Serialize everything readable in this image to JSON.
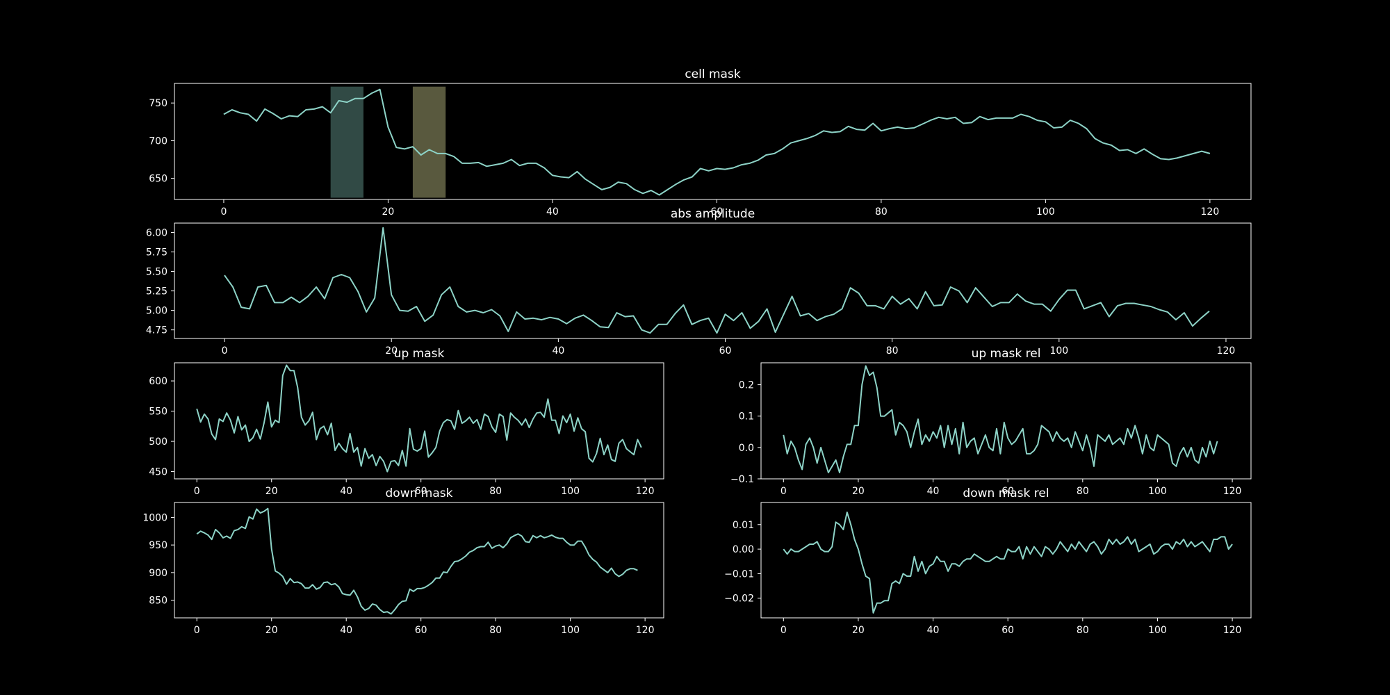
{
  "style": {
    "background": "#000000",
    "line_color": "#8dd3c7",
    "axis_color": "#ffffff",
    "span_colors": [
      "#8dd3c7",
      "#ffffb3"
    ]
  },
  "chart_data": [
    {
      "type": "line",
      "title": "cell mask",
      "xlim": [
        -6,
        125
      ],
      "ylim": [
        622,
        776
      ],
      "xticks": [
        0,
        20,
        40,
        60,
        80,
        100,
        120
      ],
      "yticks": [
        650,
        700,
        750
      ],
      "x_start": 0,
      "values": [
        735,
        741,
        737,
        735,
        726,
        742,
        736,
        729,
        733,
        732,
        741,
        742,
        745,
        737,
        753,
        751,
        756,
        756,
        763,
        768,
        718,
        691,
        689,
        692,
        681,
        688,
        683,
        683,
        679,
        670,
        670,
        671,
        666,
        668,
        670,
        675,
        667,
        670,
        670,
        664,
        654,
        652,
        651,
        659,
        649,
        642,
        635,
        638,
        645,
        643,
        635,
        630,
        634,
        628,
        635,
        642,
        648,
        652,
        663,
        660,
        663,
        662,
        664,
        668,
        670,
        674,
        681,
        683,
        689,
        697,
        700,
        703,
        707,
        713,
        711,
        712,
        719,
        715,
        714,
        723,
        713,
        716,
        718,
        716,
        717,
        722,
        727,
        731,
        729,
        731,
        723,
        724,
        732,
        728,
        730,
        730,
        730,
        735,
        732,
        727,
        725,
        717,
        718,
        727,
        723,
        716,
        703,
        697,
        694,
        687,
        688,
        683,
        689,
        682,
        676,
        675,
        677,
        680,
        683,
        686,
        683
      ]
    },
    {
      "type": "line",
      "title": "abs amplitude",
      "xlim": [
        -6,
        123
      ],
      "ylim": [
        4.64,
        6.12
      ],
      "xticks": [
        0,
        20,
        40,
        60,
        80,
        100,
        120
      ],
      "yticks": [
        4.75,
        5.0,
        5.25,
        5.5,
        5.75,
        6.0
      ],
      "tick_labels": [
        "4.75",
        "5.00",
        "5.25",
        "5.50",
        "5.75",
        "6.00"
      ],
      "x_start": 0,
      "values": [
        5.45,
        5.3,
        5.04,
        5.02,
        5.3,
        5.32,
        5.1,
        5.1,
        5.17,
        5.1,
        5.18,
        5.3,
        5.15,
        5.42,
        5.46,
        5.42,
        5.24,
        4.98,
        5.16,
        6.06,
        5.2,
        5.0,
        4.99,
        5.05,
        4.86,
        4.94,
        5.2,
        5.3,
        5.05,
        4.98,
        5.0,
        4.97,
        5.01,
        4.93,
        4.73,
        4.98,
        4.89,
        4.9,
        4.88,
        4.91,
        4.89,
        4.83,
        4.9,
        4.94,
        4.87,
        4.79,
        4.78,
        4.97,
        4.92,
        4.93,
        4.75,
        4.71,
        4.82,
        4.82,
        4.96,
        5.07,
        4.82,
        4.87,
        4.9,
        4.71,
        4.95,
        4.87,
        4.97,
        4.77,
        4.86,
        5.02,
        4.72,
        4.95,
        5.18,
        4.93,
        4.96,
        4.87,
        4.92,
        4.95,
        5.02,
        5.29,
        5.22,
        5.06,
        5.06,
        5.02,
        5.18,
        5.08,
        5.15,
        5.02,
        5.24,
        5.06,
        5.07,
        5.3,
        5.25,
        5.1,
        5.29,
        5.17,
        5.05,
        5.1,
        5.1,
        5.21,
        5.12,
        5.08,
        5.08,
        4.99,
        5.14,
        5.26,
        5.26,
        5.02,
        5.06,
        5.1,
        4.92,
        5.06,
        5.09,
        5.09,
        5.07,
        5.05,
        5.01,
        4.98,
        4.88,
        4.97,
        4.8,
        4.9,
        4.99
      ]
    },
    {
      "type": "line",
      "title": "up mask",
      "xlim": [
        -6,
        125
      ],
      "ylim": [
        438,
        630
      ],
      "xticks": [
        0,
        20,
        40,
        60,
        80,
        100,
        120
      ],
      "yticks": [
        450,
        500,
        550,
        600
      ],
      "x_start": 0,
      "values": [
        554,
        532,
        545,
        537,
        512,
        503,
        537,
        533,
        547,
        535,
        514,
        541,
        519,
        527,
        500,
        506,
        520,
        504,
        531,
        565,
        524,
        535,
        531,
        609,
        626,
        617,
        617,
        589,
        540,
        527,
        534,
        548,
        503,
        521,
        525,
        511,
        530,
        485,
        497,
        488,
        482,
        513,
        482,
        490,
        459,
        488,
        472,
        478,
        460,
        475,
        467,
        450,
        467,
        468,
        460,
        485,
        459,
        521,
        487,
        484,
        488,
        517,
        474,
        481,
        490,
        517,
        531,
        536,
        534,
        520,
        551,
        530,
        534,
        540,
        530,
        536,
        520,
        545,
        541,
        524,
        515,
        545,
        541,
        502,
        547,
        540,
        535,
        527,
        537,
        523,
        537,
        547,
        548,
        540,
        570,
        535,
        535,
        513,
        542,
        531,
        545,
        517,
        539,
        521,
        516,
        472,
        466,
        480,
        505,
        478,
        494,
        470,
        467,
        497,
        503,
        488,
        483,
        478,
        503,
        490
      ]
    },
    {
      "type": "line",
      "title": "up mask rel",
      "xlim": [
        -6,
        125
      ],
      "ylim": [
        -0.1,
        0.27
      ],
      "xticks": [
        0,
        20,
        40,
        60,
        80,
        100,
        120
      ],
      "yticks": [
        -0.1,
        0.0,
        0.1,
        0.2
      ],
      "tick_labels": [
        "−0.1",
        "0.0",
        "0.1",
        "0.2"
      ],
      "x_start": 0,
      "values": [
        0.04,
        -0.02,
        0.02,
        0.0,
        -0.04,
        -0.07,
        0.01,
        0.03,
        0.0,
        -0.05,
        0.0,
        -0.04,
        -0.08,
        -0.06,
        -0.04,
        -0.08,
        -0.03,
        0.01,
        0.01,
        0.07,
        0.07,
        0.2,
        0.26,
        0.23,
        0.24,
        0.19,
        0.1,
        0.1,
        0.11,
        0.12,
        0.04,
        0.08,
        0.07,
        0.05,
        0.0,
        0.05,
        0.09,
        0.01,
        0.04,
        0.02,
        0.05,
        0.03,
        0.07,
        0.0,
        0.07,
        0.01,
        0.06,
        -0.02,
        0.08,
        0.0,
        0.02,
        0.03,
        -0.02,
        0.01,
        0.04,
        0.0,
        -0.01,
        0.06,
        -0.02,
        0.08,
        0.03,
        0.01,
        0.02,
        0.04,
        0.06,
        -0.02,
        -0.02,
        -0.01,
        0.01,
        0.07,
        0.06,
        0.05,
        0.02,
        0.05,
        0.03,
        0.02,
        0.03,
        0.0,
        0.05,
        0.02,
        -0.01,
        0.04,
        0.0,
        -0.06,
        0.04,
        0.03,
        0.02,
        0.04,
        0.01,
        0.02,
        0.03,
        0.01,
        0.06,
        0.03,
        0.07,
        0.03,
        -0.02,
        0.04,
        0.0,
        -0.01,
        0.04,
        0.03,
        0.02,
        0.01,
        -0.05,
        -0.06,
        -0.02,
        0.0,
        -0.03,
        0.0,
        -0.04,
        -0.05,
        0.0,
        -0.03,
        0.02,
        -0.02,
        0.02
      ]
    },
    {
      "type": "line",
      "title": "down mask",
      "xlim": [
        -6,
        125
      ],
      "ylim": [
        818,
        1027
      ],
      "xticks": [
        0,
        20,
        40,
        60,
        80,
        100,
        120
      ],
      "yticks": [
        850,
        900,
        950,
        1000
      ],
      "x_start": 0,
      "values": [
        970,
        975,
        972,
        968,
        960,
        978,
        972,
        963,
        966,
        962,
        976,
        978,
        983,
        980,
        1001,
        997,
        1015,
        1008,
        1011,
        1016,
        943,
        903,
        899,
        893,
        879,
        889,
        882,
        883,
        880,
        872,
        872,
        878,
        870,
        873,
        882,
        883,
        878,
        880,
        874,
        862,
        860,
        859,
        868,
        856,
        839,
        832,
        835,
        843,
        841,
        833,
        828,
        829,
        825,
        833,
        842,
        848,
        849,
        870,
        866,
        871,
        871,
        873,
        877,
        882,
        890,
        890,
        901,
        900,
        911,
        920,
        921,
        925,
        930,
        937,
        940,
        945,
        947,
        947,
        955,
        944,
        948,
        950,
        945,
        952,
        963,
        967,
        970,
        966,
        956,
        955,
        967,
        963,
        967,
        963,
        965,
        968,
        964,
        962,
        962,
        955,
        950,
        950,
        957,
        957,
        946,
        932,
        924,
        919,
        910,
        905,
        900,
        908,
        898,
        893,
        897,
        904,
        907,
        907,
        904
      ]
    },
    {
      "type": "line",
      "title": "down mask rel",
      "xlim": [
        -6,
        125
      ],
      "ylim": [
        -0.028,
        0.019
      ],
      "xticks": [
        0,
        20,
        40,
        60,
        80,
        100,
        120
      ],
      "yticks": [
        -0.02,
        -0.01,
        0.0,
        0.01
      ],
      "tick_labels": [
        "−0.02",
        "−0.01",
        "0.00",
        "0.01"
      ],
      "x_start": 0,
      "values": [
        0.0,
        -0.002,
        0.0,
        -0.001,
        -0.001,
        0.0,
        0.001,
        0.002,
        0.002,
        0.003,
        0.0,
        -0.001,
        -0.001,
        0.001,
        0.011,
        0.01,
        0.008,
        0.015,
        0.01,
        0.004,
        0.0,
        -0.006,
        -0.011,
        -0.012,
        -0.026,
        -0.022,
        -0.022,
        -0.021,
        -0.021,
        -0.014,
        -0.013,
        -0.014,
        -0.01,
        -0.011,
        -0.011,
        -0.003,
        -0.009,
        -0.005,
        -0.01,
        -0.007,
        -0.006,
        -0.003,
        -0.005,
        -0.005,
        -0.009,
        -0.006,
        -0.006,
        -0.007,
        -0.005,
        -0.004,
        -0.004,
        -0.002,
        -0.003,
        -0.004,
        -0.005,
        -0.005,
        -0.004,
        -0.003,
        -0.004,
        -0.004,
        0.0,
        -0.001,
        -0.001,
        0.001,
        -0.004,
        0.001,
        -0.002,
        0.001,
        -0.001,
        -0.003,
        0.001,
        0.0,
        -0.002,
        0.0,
        0.003,
        0.001,
        -0.001,
        0.002,
        0.0,
        0.003,
        0.001,
        -0.001,
        0.002,
        0.003,
        0.001,
        -0.002,
        0.0,
        0.004,
        0.002,
        0.004,
        0.002,
        0.003,
        0.005,
        0.002,
        0.004,
        -0.001,
        0.0,
        0.001,
        0.002,
        -0.002,
        -0.001,
        0.001,
        0.002,
        0.002,
        0.0,
        0.003,
        0.002,
        0.004,
        0.001,
        0.003,
        0.001,
        0.002,
        0.003,
        0.001,
        -0.001,
        0.004,
        0.004,
        0.005,
        0.005,
        0.0,
        0.002
      ],
      "note_x_step": 1
    }
  ],
  "spans": [
    {
      "panel": 0,
      "x0": 13,
      "x1": 17,
      "color": "#8dd3c7"
    },
    {
      "panel": 0,
      "x0": 23,
      "x1": 27,
      "color": "#ffffb3"
    }
  ]
}
